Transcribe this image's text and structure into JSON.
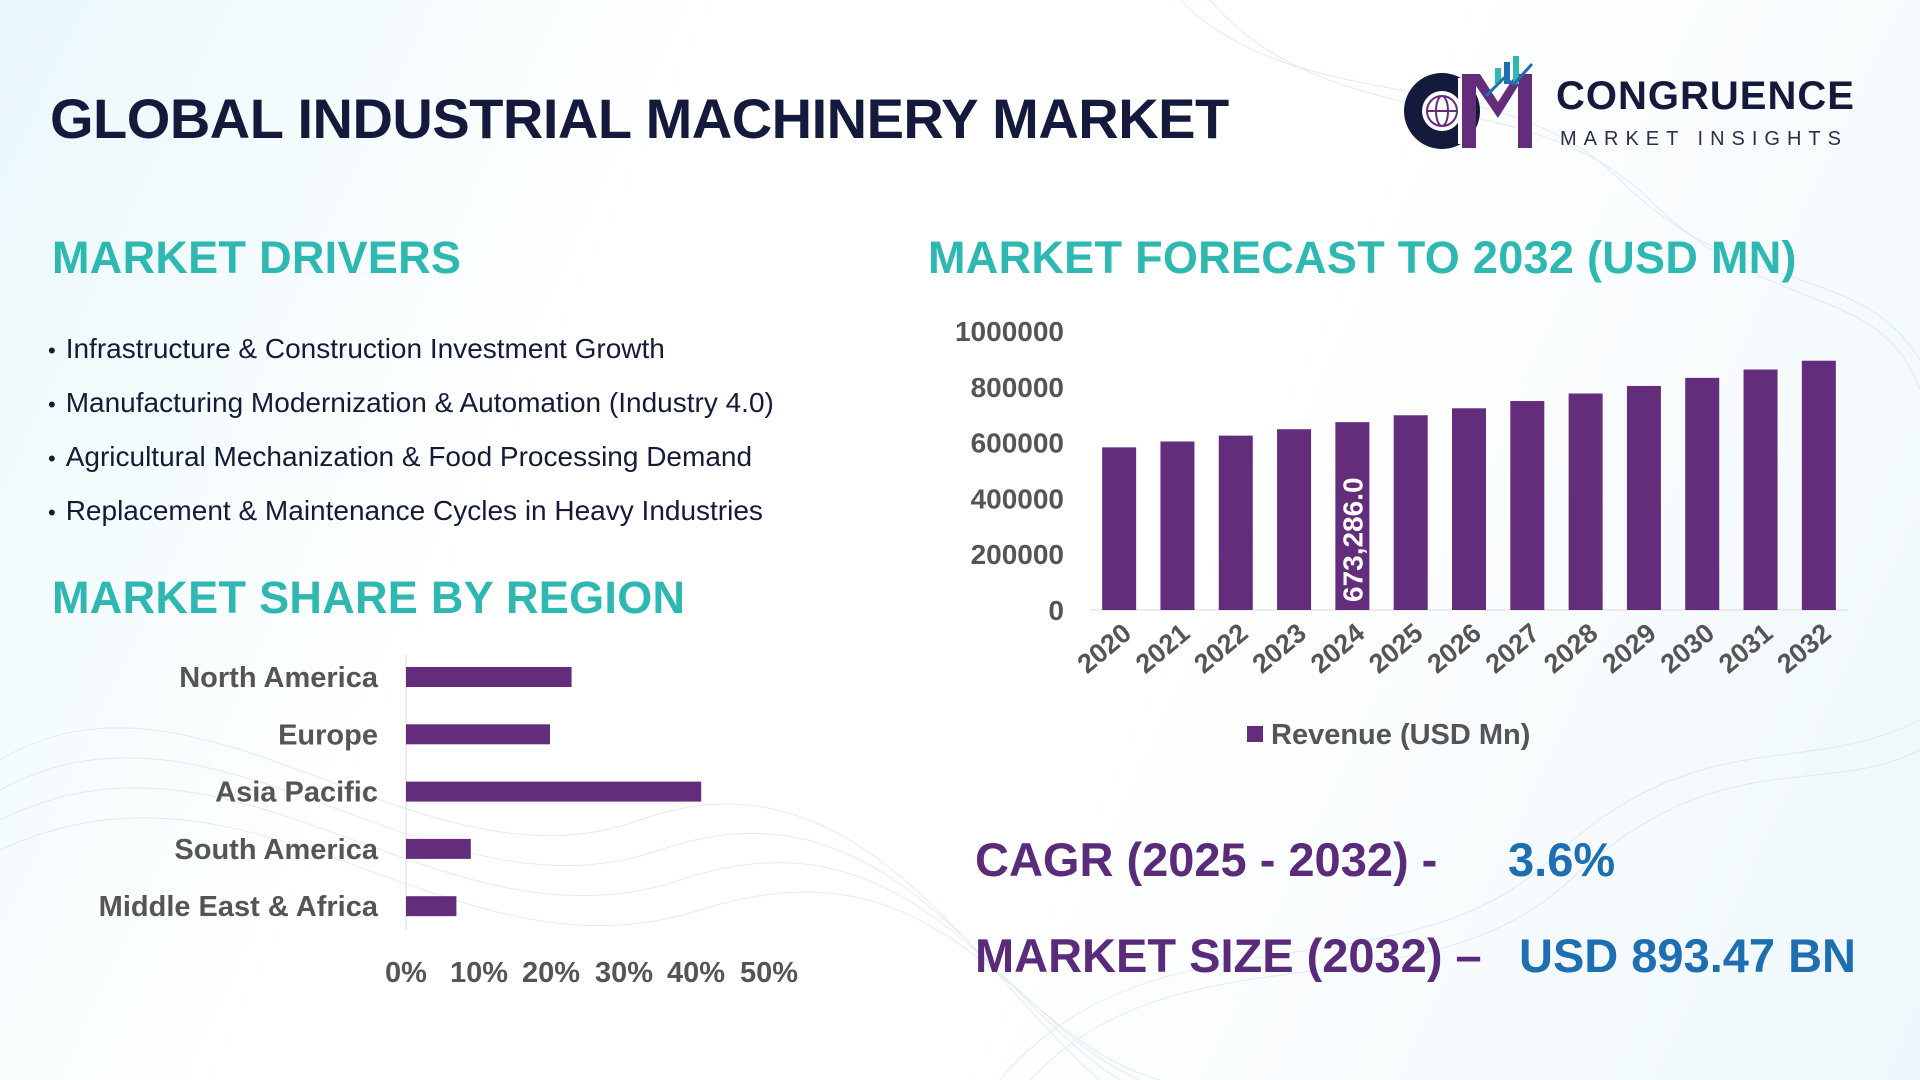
{
  "header": {
    "title": "GLOBAL INDUSTRIAL MACHINERY MARKET",
    "logo_name": "CONGRUENCE",
    "logo_tagline": "MARKET INSIGHTS"
  },
  "drivers": {
    "title": "MARKET DRIVERS",
    "items": [
      "Infrastructure & Construction Investment Growth",
      "Manufacturing Modernization & Automation (Industry 4.0)",
      "Agricultural Mechanization & Food Processing Demand",
      "Replacement & Maintenance Cycles in Heavy Industries"
    ]
  },
  "region": {
    "title": "MARKET SHARE BY REGION"
  },
  "forecast": {
    "title": "MARKET FORECAST TO 2032 (USD MN)"
  },
  "stats": {
    "cagr_label": "CAGR (2025 - 2032) -",
    "cagr_value": "3.6%",
    "size_label": "MARKET SIZE (2032) –",
    "size_value": "USD 893.47 BN"
  },
  "colors": {
    "bar": "#642d7b",
    "teal": "#2fb7b2",
    "navy": "#141a3c",
    "stat_blue": "#1e6fb2"
  },
  "chart_data": [
    {
      "type": "bar",
      "orientation": "vertical",
      "categories": [
        "2020",
        "2021",
        "2022",
        "2023",
        "2024",
        "2025",
        "2026",
        "2027",
        "2028",
        "2029",
        "2030",
        "2031",
        "2032"
      ],
      "series": [
        {
          "name": "Revenue (USD Mn)",
          "values": [
            583000,
            604000,
            625000,
            648000,
            673286,
            698000,
            723000,
            749000,
            776000,
            803000,
            832000,
            862000,
            893470
          ]
        }
      ],
      "yticks": [
        "1000000",
        "800000",
        "600000",
        "400000",
        "200000",
        "0"
      ],
      "ylim": [
        0,
        1000000
      ],
      "data_labels": [
        {
          "category": "2024",
          "label": "673,286.0"
        }
      ],
      "legend": "bottom"
    },
    {
      "type": "bar",
      "orientation": "horizontal",
      "categories": [
        "North America",
        "Europe",
        "Asia Pacific",
        "South America",
        "Middle East & Africa"
      ],
      "values": [
        23,
        20,
        41,
        9,
        7
      ],
      "xticks": [
        "0%",
        "10%",
        "20%",
        "30%",
        "40%",
        "50%"
      ],
      "xlim": [
        0,
        50
      ]
    }
  ]
}
